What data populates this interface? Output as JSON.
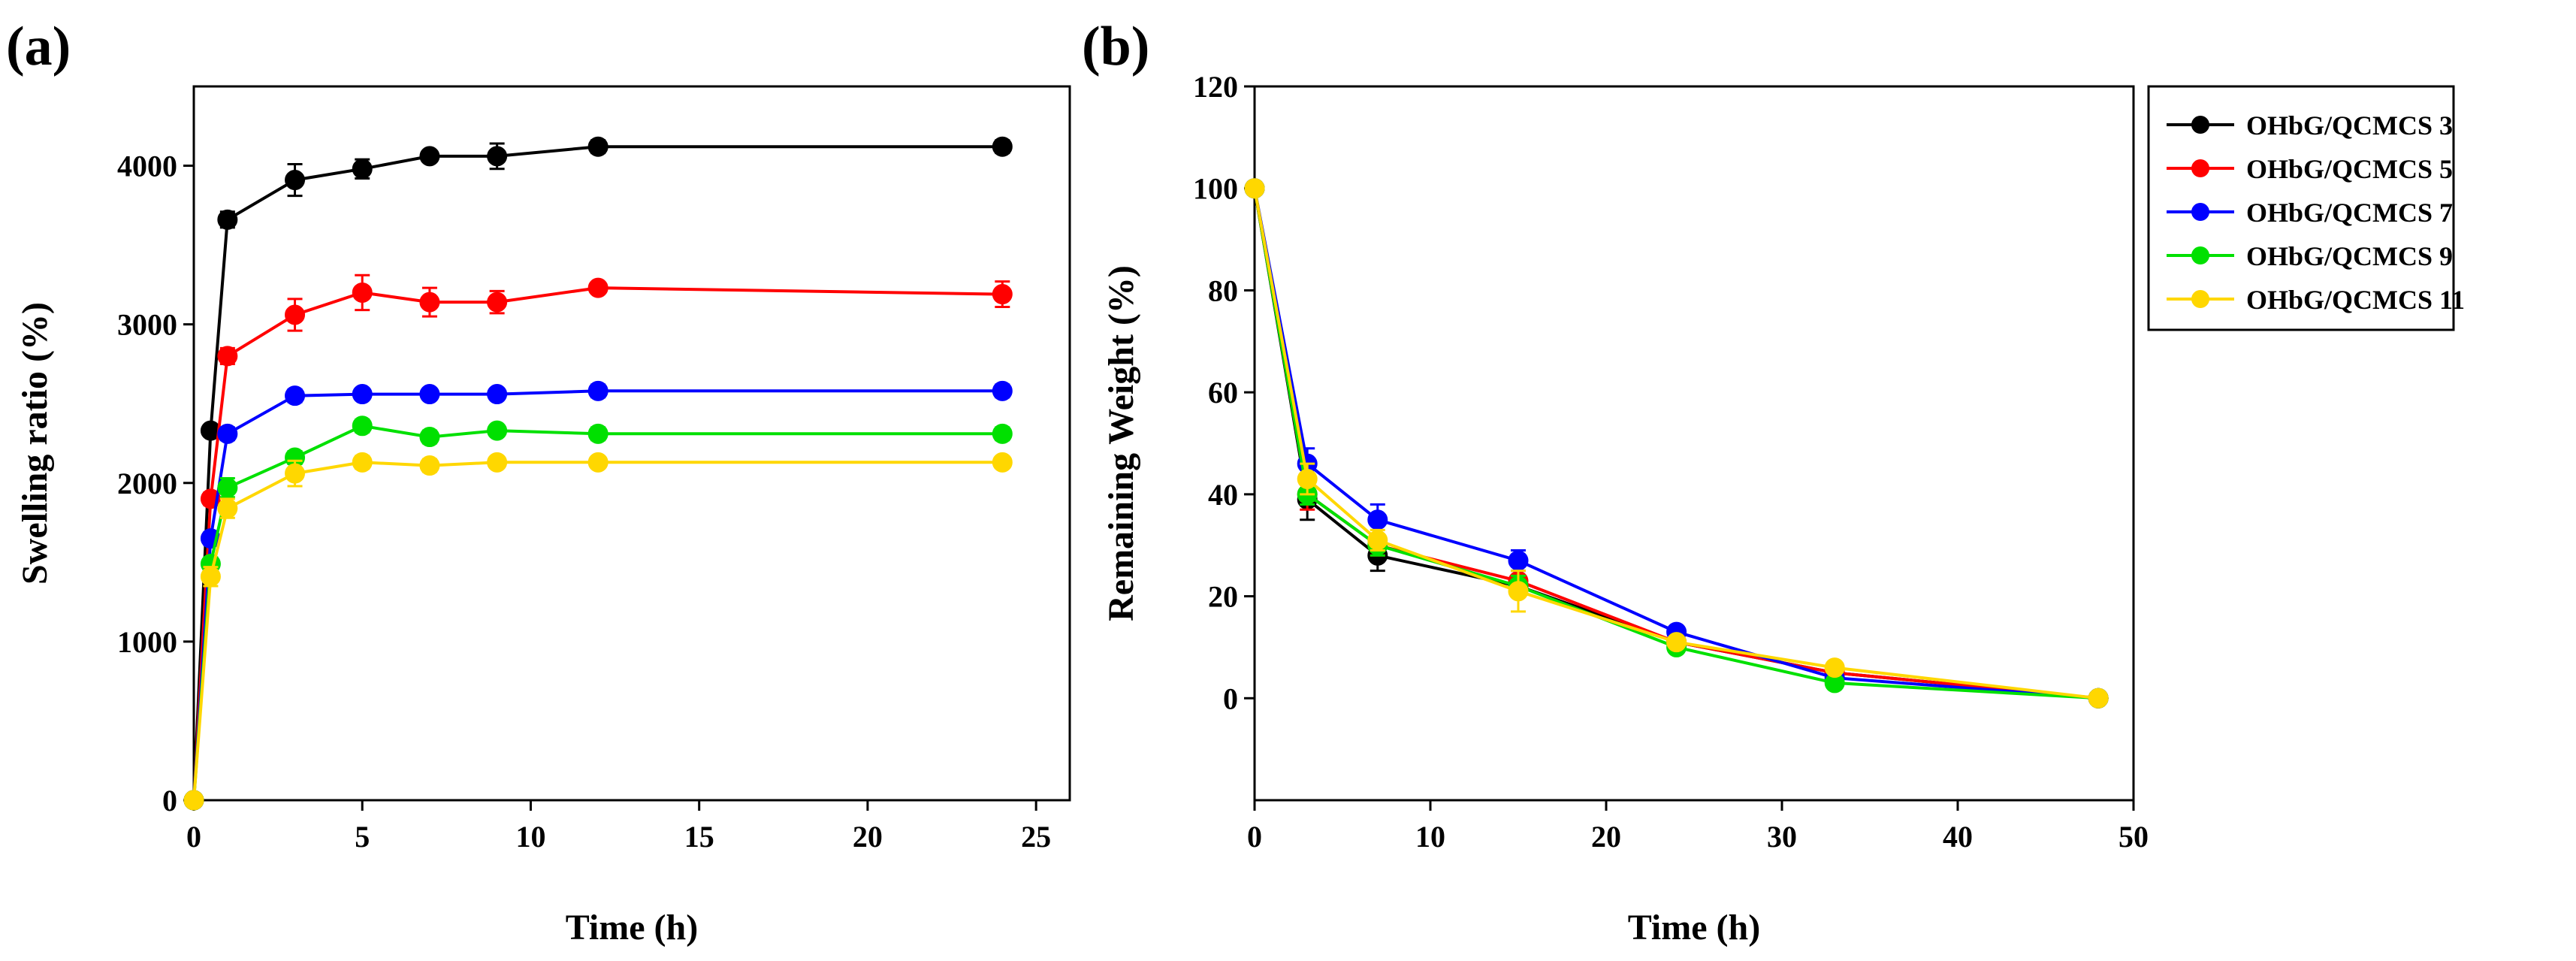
{
  "chart_data": [
    {
      "panel_label": "(a)",
      "type": "line",
      "xlabel": "Time (h)",
      "ylabel": "Swelling ratio (%)",
      "xlim": [
        0,
        26
      ],
      "ylim": [
        0,
        4500
      ],
      "xticks": [
        0,
        5,
        10,
        15,
        20,
        25
      ],
      "yticks": [
        0,
        1000,
        2000,
        3000,
        4000
      ],
      "x": [
        0,
        0.5,
        1,
        3,
        5,
        7,
        9,
        12,
        24
      ],
      "series": [
        {
          "name": "OHbG/QCMCS 3",
          "color": "#000000",
          "values": [
            0,
            2330,
            3660,
            3910,
            3980,
            4060,
            4060,
            4120,
            4120
          ],
          "errors": [
            0,
            30,
            50,
            100,
            60,
            30,
            80,
            40,
            40
          ]
        },
        {
          "name": "OHbG/QCMCS 5",
          "color": "#ff0000",
          "values": [
            0,
            1900,
            2800,
            3060,
            3200,
            3140,
            3140,
            3230,
            3190
          ],
          "errors": [
            0,
            40,
            50,
            100,
            110,
            90,
            70,
            30,
            80
          ]
        },
        {
          "name": "OHbG/QCMCS 7",
          "color": "#0000ff",
          "values": [
            0,
            1650,
            2310,
            2550,
            2560,
            2560,
            2560,
            2580,
            2580
          ],
          "errors": [
            0,
            40,
            40,
            40,
            30,
            30,
            30,
            40,
            40
          ]
        },
        {
          "name": "OHbG/QCMCS 9",
          "color": "#00e000",
          "values": [
            0,
            1490,
            1970,
            2160,
            2360,
            2290,
            2330,
            2310,
            2310
          ],
          "errors": [
            0,
            40,
            60,
            40,
            40,
            40,
            30,
            40,
            40
          ]
        },
        {
          "name": "OHbG/QCMCS 11",
          "color": "#ffd700",
          "values": [
            0,
            1410,
            1840,
            2060,
            2130,
            2110,
            2130,
            2130,
            2130
          ],
          "errors": [
            0,
            60,
            60,
            80,
            40,
            40,
            30,
            30,
            30
          ]
        }
      ]
    },
    {
      "panel_label": "(b)",
      "type": "line",
      "xlabel": "Time (h)",
      "ylabel": "Remaining Weight (%)",
      "xlim": [
        0,
        50
      ],
      "ylim": [
        -20,
        120
      ],
      "xticks": [
        0,
        10,
        20,
        30,
        40,
        50
      ],
      "yticks": [
        0,
        20,
        40,
        60,
        80,
        100,
        120
      ],
      "x": [
        0,
        3,
        7,
        15,
        24,
        33,
        48
      ],
      "legend_position": "outside-right",
      "series": [
        {
          "name": "OHbG/QCMCS 3",
          "color": "#000000",
          "values": [
            100,
            39,
            28,
            22,
            11,
            5,
            0
          ],
          "errors": [
            0,
            4,
            3,
            2,
            1,
            1,
            0
          ]
        },
        {
          "name": "OHbG/QCMCS 5",
          "color": "#ff0000",
          "values": [
            100,
            40,
            30,
            23,
            11,
            5,
            0
          ],
          "errors": [
            0,
            3,
            2,
            2,
            1,
            1,
            0
          ]
        },
        {
          "name": "OHbG/QCMCS 7",
          "color": "#0000ff",
          "values": [
            100,
            46,
            35,
            27,
            13,
            4,
            0
          ],
          "errors": [
            0,
            3,
            3,
            2,
            1,
            1,
            0
          ]
        },
        {
          "name": "OHbG/QCMCS 9",
          "color": "#00e000",
          "values": [
            100,
            40,
            30,
            22,
            10,
            3,
            0
          ],
          "errors": [
            0,
            2,
            2,
            2,
            1,
            1,
            0
          ]
        },
        {
          "name": "OHbG/QCMCS 11",
          "color": "#ffd700",
          "values": [
            100,
            43,
            31,
            21,
            11,
            6,
            0
          ],
          "errors": [
            0,
            3,
            2,
            4,
            1,
            1,
            0
          ]
        }
      ]
    }
  ]
}
